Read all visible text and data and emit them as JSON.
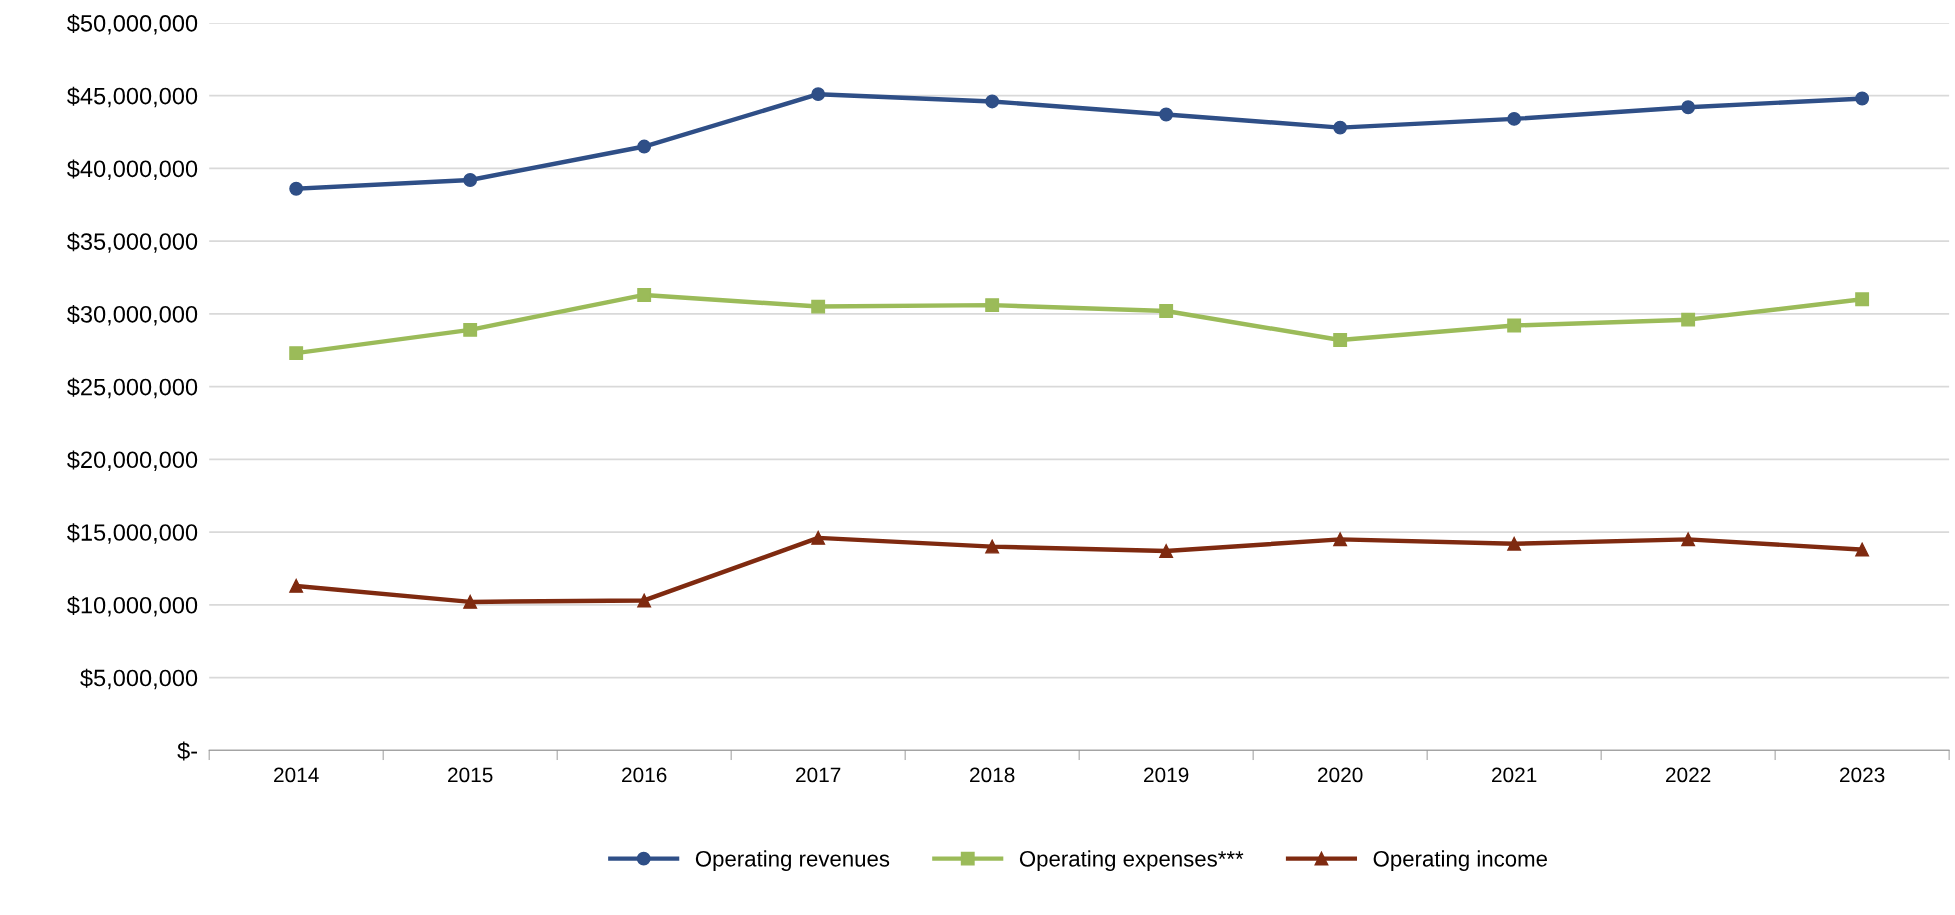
{
  "chart_data": {
    "type": "line",
    "categories": [
      "2014",
      "2015",
      "2016",
      "2017",
      "2018",
      "2019",
      "2020",
      "2021",
      "2022",
      "2023"
    ],
    "series": [
      {
        "name": "Operating revenues",
        "color": "#2f4f87",
        "marker": "circle",
        "values": [
          38600000,
          39200000,
          41500000,
          45100000,
          44600000,
          43700000,
          42800000,
          43400000,
          44200000,
          44800000
        ]
      },
      {
        "name": "Operating expenses***",
        "color": "#9bbb59",
        "marker": "square",
        "values": [
          27300000,
          28900000,
          31300000,
          30500000,
          30600000,
          30200000,
          28200000,
          29200000,
          29600000,
          31000000
        ]
      },
      {
        "name": "Operating income",
        "color": "#7f2a10",
        "marker": "triangle",
        "values": [
          11300000,
          10200000,
          10300000,
          14600000,
          14000000,
          13700000,
          14500000,
          14200000,
          14500000,
          13800000
        ]
      }
    ],
    "ylim": [
      0,
      50000000
    ],
    "yticks": [
      {
        "value": 0,
        "label": "$-"
      },
      {
        "value": 5000000,
        "label": "$5,000,000"
      },
      {
        "value": 10000000,
        "label": "$10,000,000"
      },
      {
        "value": 15000000,
        "label": "$15,000,000"
      },
      {
        "value": 20000000,
        "label": "$20,000,000"
      },
      {
        "value": 25000000,
        "label": "$25,000,000"
      },
      {
        "value": 30000000,
        "label": "$30,000,000"
      },
      {
        "value": 35000000,
        "label": "$35,000,000"
      },
      {
        "value": 40000000,
        "label": "$40,000,000"
      },
      {
        "value": 45000000,
        "label": "$45,000,000"
      },
      {
        "value": 50000000,
        "label": "$50,000,000"
      }
    ],
    "grid": "y",
    "legend": "bottom",
    "line_style": "solid"
  }
}
